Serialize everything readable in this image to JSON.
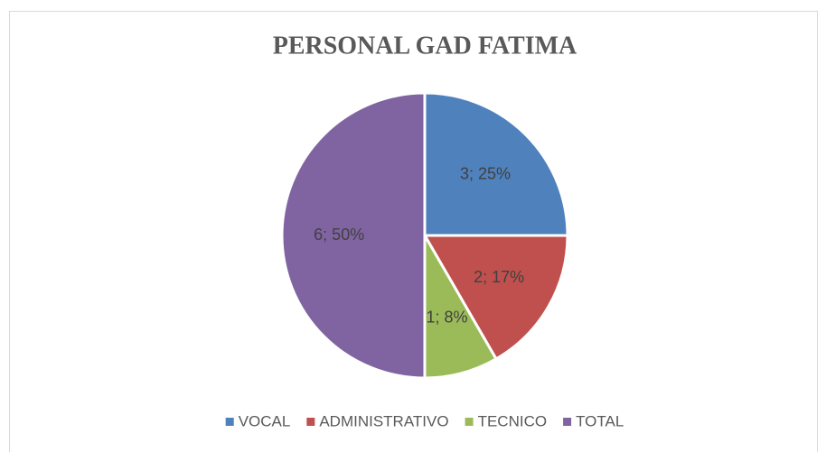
{
  "chart_data": {
    "type": "pie",
    "title": "PERSONAL GAD FATIMA",
    "categories": [
      "VOCAL",
      "ADMINISTRATIVO",
      "TECNICO",
      "TOTAL"
    ],
    "values": [
      3,
      2,
      1,
      6
    ],
    "value_labels": [
      "3; 25%",
      "2; 17%",
      "1; 8%",
      "6; 50%"
    ],
    "colors": [
      "#4f81bd",
      "#c0504d",
      "#9bbb59",
      "#8064a2"
    ],
    "legend": "bottom"
  }
}
